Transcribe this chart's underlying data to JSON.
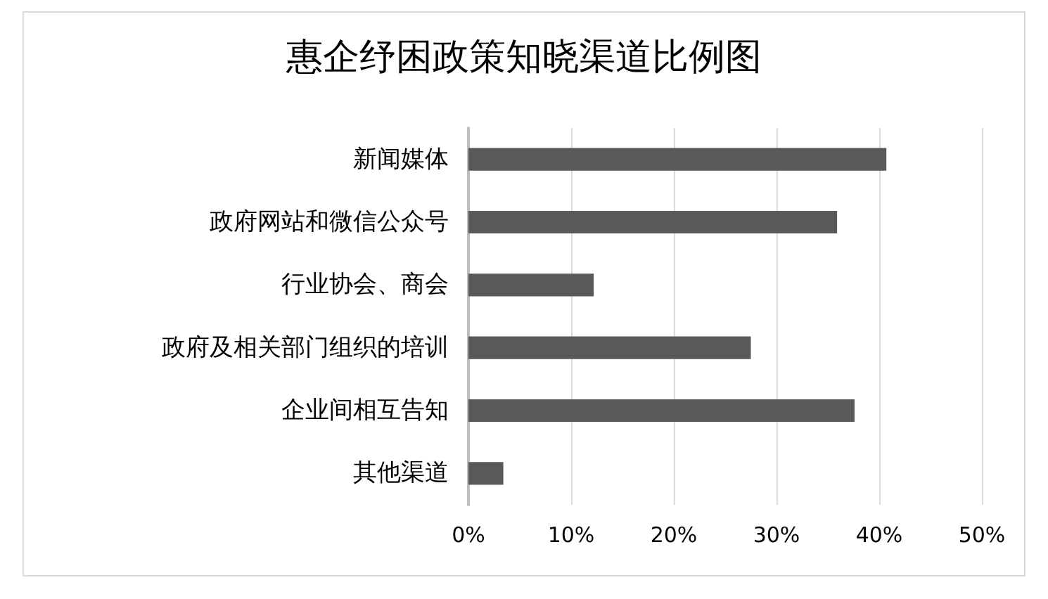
{
  "chart_data": {
    "type": "bar",
    "orientation": "horizontal",
    "title": "惠企纾困政策知晓渠道比例图",
    "categories": [
      "新闻媒体",
      "政府网站和微信公众号",
      "行业协会、商会",
      "政府及相关部门组织的培训",
      "企业间相互告知",
      "其他渠道"
    ],
    "values": [
      40.7,
      35.9,
      12.2,
      27.5,
      37.6,
      3.4
    ],
    "color": "#595959",
    "xlim": [
      0,
      50
    ],
    "xticks": [
      {
        "value": 0,
        "label": "0%"
      },
      {
        "value": 10,
        "label": "10%"
      },
      {
        "value": 20,
        "label": "20%"
      },
      {
        "value": 30,
        "label": "30%"
      },
      {
        "value": 40,
        "label": "40%"
      },
      {
        "value": 50,
        "label": "50%"
      }
    ],
    "grid": "x"
  }
}
